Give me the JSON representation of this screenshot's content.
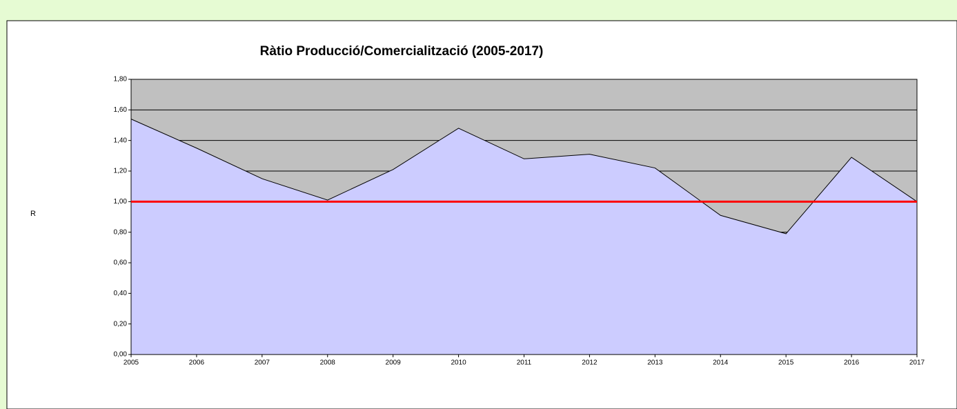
{
  "chart_data": {
    "type": "area",
    "title": "Ràtio Producció/Comercialització (2005-2017)",
    "y_label": "R",
    "categories": [
      "2005",
      "2006",
      "2007",
      "2008",
      "2009",
      "2010",
      "2011",
      "2012",
      "2013",
      "2014",
      "2015",
      "2016",
      "2017"
    ],
    "values": [
      1.54,
      1.35,
      1.15,
      1.01,
      1.21,
      1.48,
      1.28,
      1.31,
      1.22,
      0.91,
      0.79,
      1.29,
      1.0
    ],
    "color": "#ccccff",
    "line_color": "#000000",
    "plot_background": "#c0c0c0",
    "reference_line": 1.0,
    "reference_color": "#ff0000",
    "ylim": [
      0,
      1.8
    ],
    "yticks": [
      {
        "value": 0,
        "label": "0,00"
      },
      {
        "value": 0.2,
        "label": "0,20"
      },
      {
        "value": 0.4,
        "label": "0,40"
      },
      {
        "value": 0.6,
        "label": "0,60"
      },
      {
        "value": 0.8,
        "label": "0,80"
      },
      {
        "value": 1.0,
        "label": "1,00"
      },
      {
        "value": 1.2,
        "label": "1,20"
      },
      {
        "value": 1.4,
        "label": "1,40"
      },
      {
        "value": 1.6,
        "label": "1,60"
      },
      {
        "value": 1.8,
        "label": "1,80"
      }
    ],
    "grid": true
  }
}
